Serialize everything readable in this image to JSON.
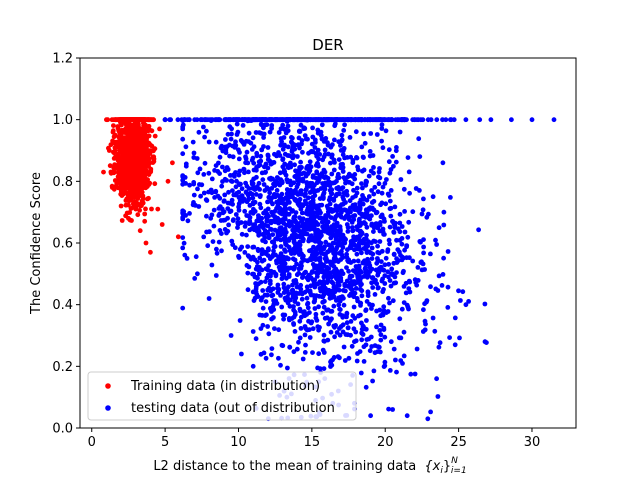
{
  "chart_data": {
    "type": "scatter",
    "title": "DER",
    "xlabel_text": "L2 distance to the mean of training data",
    "xlabel_math": "{x_i}_{i=1}^N",
    "ylabel": "The Confidence Score",
    "xlim": [
      -0.8,
      33.0
    ],
    "ylim": [
      0.0,
      1.2
    ],
    "xticks": [
      "0",
      "5",
      "10",
      "15",
      "20",
      "25",
      "30"
    ],
    "xtick_values": [
      0,
      5,
      10,
      15,
      20,
      25,
      30
    ],
    "yticks": [
      "0.0",
      "0.2",
      "0.4",
      "0.6",
      "0.8",
      "1.0",
      "1.2"
    ],
    "ytick_values": [
      0.0,
      0.2,
      0.4,
      0.6,
      0.8,
      1.0,
      1.2
    ],
    "grid": false,
    "legend_position": "lower-left",
    "series": [
      {
        "name": "Training data (in distribution)",
        "color": "#ff0000",
        "x_range": [
          0.7,
          6.0
        ],
        "y_range": [
          0.56,
          1.0
        ],
        "points": [
          [
            0.8,
            0.83
          ],
          [
            1.2,
            0.9
          ],
          [
            1.4,
            0.78
          ],
          [
            1.6,
            0.95
          ],
          [
            1.8,
            1.0
          ],
          [
            2.0,
            0.72
          ],
          [
            2.1,
            0.88
          ],
          [
            2.3,
            0.97
          ],
          [
            2.5,
            0.68
          ],
          [
            2.6,
            0.81
          ],
          [
            2.8,
            1.0
          ],
          [
            3.0,
            0.75
          ],
          [
            3.1,
            0.92
          ],
          [
            3.3,
            0.64
          ],
          [
            3.4,
            0.86
          ],
          [
            3.6,
            1.0
          ],
          [
            3.7,
            0.6
          ],
          [
            3.9,
            0.79
          ],
          [
            4.0,
            0.57
          ],
          [
            4.2,
            0.9
          ],
          [
            4.5,
            0.71
          ],
          [
            4.8,
            0.66
          ],
          [
            5.2,
            0.8
          ],
          [
            5.5,
            0.86
          ],
          [
            5.9,
            0.62
          ]
        ]
      },
      {
        "name": "testing data (out of distribution",
        "color": "#0000ff",
        "x_range": [
          5.0,
          31.5
        ],
        "y_range": [
          0.03,
          1.0
        ],
        "points": [
          [
            5.0,
            1.0
          ],
          [
            6.5,
            0.55
          ],
          [
            7.2,
            0.5
          ],
          [
            8.0,
            0.42
          ],
          [
            9.5,
            0.3
          ],
          [
            10.2,
            0.24
          ],
          [
            11.0,
            0.2
          ],
          [
            12.5,
            0.15
          ],
          [
            13.3,
            0.1
          ],
          [
            14.0,
            0.62
          ],
          [
            15.5,
            0.05
          ],
          [
            16.8,
            0.12
          ],
          [
            17.9,
            0.08
          ],
          [
            19.0,
            0.04
          ],
          [
            20.5,
            0.06
          ],
          [
            21.5,
            0.04
          ],
          [
            22.9,
            0.03
          ],
          [
            23.5,
            0.16
          ],
          [
            24.0,
            0.7
          ],
          [
            25.5,
            0.4
          ],
          [
            26.8,
            0.28
          ],
          [
            27.2,
            1.0
          ],
          [
            28.6,
            1.0
          ],
          [
            31.5,
            1.0
          ],
          [
            30.0,
            1.0
          ]
        ]
      }
    ],
    "legend_entries": [
      "Training data (in distribution)",
      "testing data (out of distribution"
    ]
  }
}
